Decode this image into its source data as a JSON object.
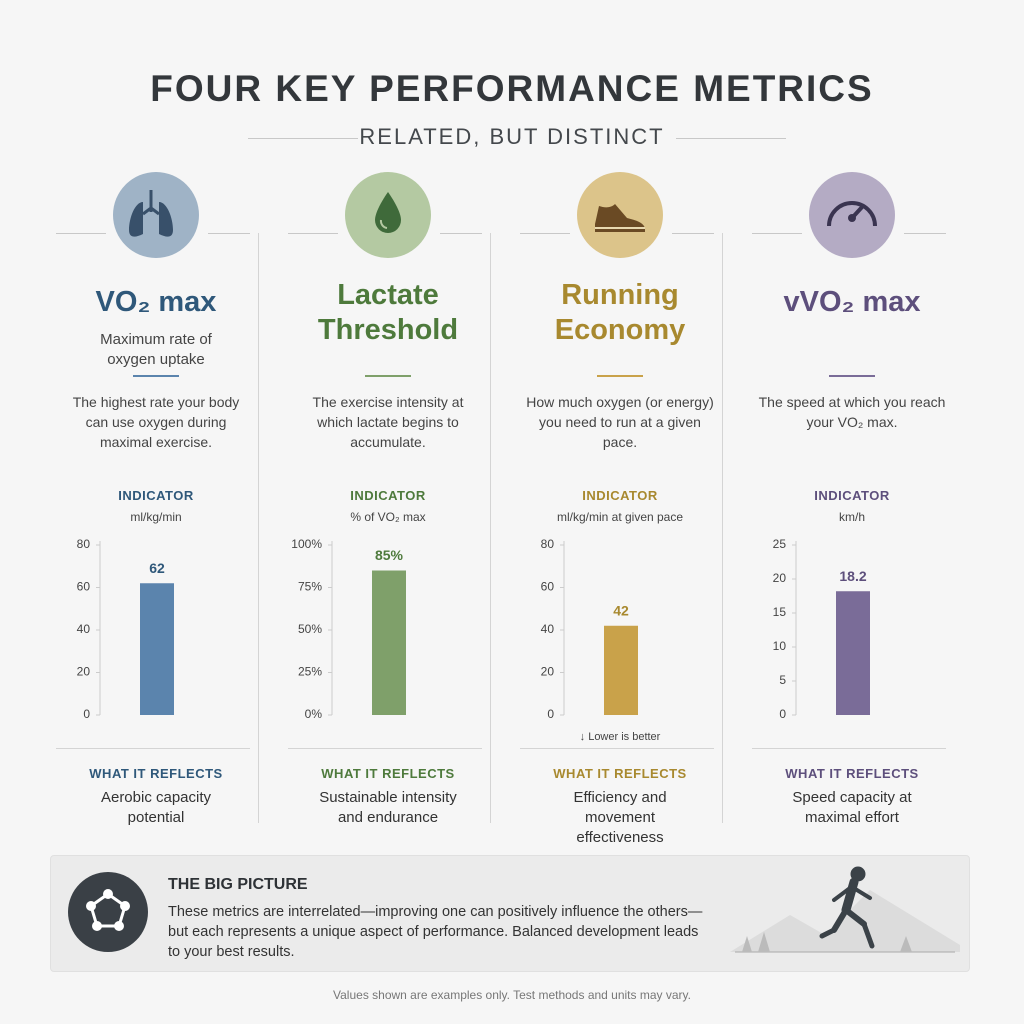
{
  "title": "FOUR KEY PERFORMANCE METRICS",
  "subtitle": "RELATED, BUT DISTINCT",
  "chart_data": [
    {
      "type": "bar",
      "title": "VO₂ max",
      "subtitle": "Maximum rate of oxygen uptake",
      "description": "The highest rate your body can use oxygen during maximal exercise.",
      "indicator_heading": "INDICATOR",
      "axis_label": "ml/kg/min",
      "categories": [
        null
      ],
      "values": [
        62
      ],
      "color": "#5b84ad",
      "title_color": "#2f587a",
      "icon_color": "#9fb3c6",
      "ylim": [
        0,
        80
      ],
      "yticks": [
        0,
        20,
        40,
        60,
        80
      ],
      "reflects_heading": "WHAT IT REFLECTS",
      "reflects": "Aerobic capacity potential"
    },
    {
      "type": "bar",
      "title": "Lactate Threshold",
      "subtitle": null,
      "description": "The exercise intensity at which lactate begins to accumulate.",
      "indicator_heading": "INDICATOR",
      "axis_label": "% of VO₂ max",
      "categories": [
        null
      ],
      "values": [
        85
      ],
      "value_labels": [
        "85%"
      ],
      "color": "#7fa06a",
      "title_color": "#4e7a3c",
      "icon_color": "#b4c9a2",
      "ylim": [
        0,
        100
      ],
      "yticks": [
        {
          "value": 0,
          "label": "0%"
        },
        {
          "value": 25,
          "label": "25%"
        },
        {
          "value": 50,
          "label": "50%"
        },
        {
          "value": 75,
          "label": "75%"
        },
        {
          "value": 100,
          "label": "100%"
        }
      ],
      "reflects_heading": "WHAT IT REFLECTS",
      "reflects": "Sustainable intensity and endurance"
    },
    {
      "type": "bar",
      "title": "Running Economy",
      "subtitle": null,
      "description": "How much oxygen (or energy) you need to run at a given pace.",
      "indicator_heading": "INDICATOR",
      "axis_label": "ml/kg/min at given pace",
      "categories": [
        null
      ],
      "values": [
        42
      ],
      "color": "#c9a24a",
      "title_color": "#a8892f",
      "icon_color": "#dcc48a",
      "ylim": [
        0,
        80
      ],
      "yticks": [
        0,
        20,
        40,
        60,
        80
      ],
      "note": "↓  Lower is better",
      "reflects_heading": "WHAT IT REFLECTS",
      "reflects": "Efficiency and movement effectiveness"
    },
    {
      "type": "bar",
      "title": "vVO₂ max",
      "subtitle": null,
      "description": "The speed at which you reach your VO₂ max.",
      "indicator_heading": "INDICATOR",
      "axis_label": "km/h",
      "categories": [
        null
      ],
      "values": [
        18.2
      ],
      "color": "#7a6c98",
      "title_color": "#5d4f7c",
      "icon_color": "#b4abc4",
      "ylim": [
        0,
        25
      ],
      "yticks": [
        0,
        5,
        10,
        15,
        20,
        25
      ],
      "reflects_heading": "WHAT IT REFLECTS",
      "reflects": "Speed capacity at maximal effort"
    }
  ],
  "big_picture": {
    "title": "THE BIG PICTURE",
    "text": "These metrics are interrelated—improving one can positively influence the others—but each represents a unique aspect of performance. Balanced development leads to your best results."
  },
  "footnote": "Values shown are examples only. Test methods and units may vary."
}
